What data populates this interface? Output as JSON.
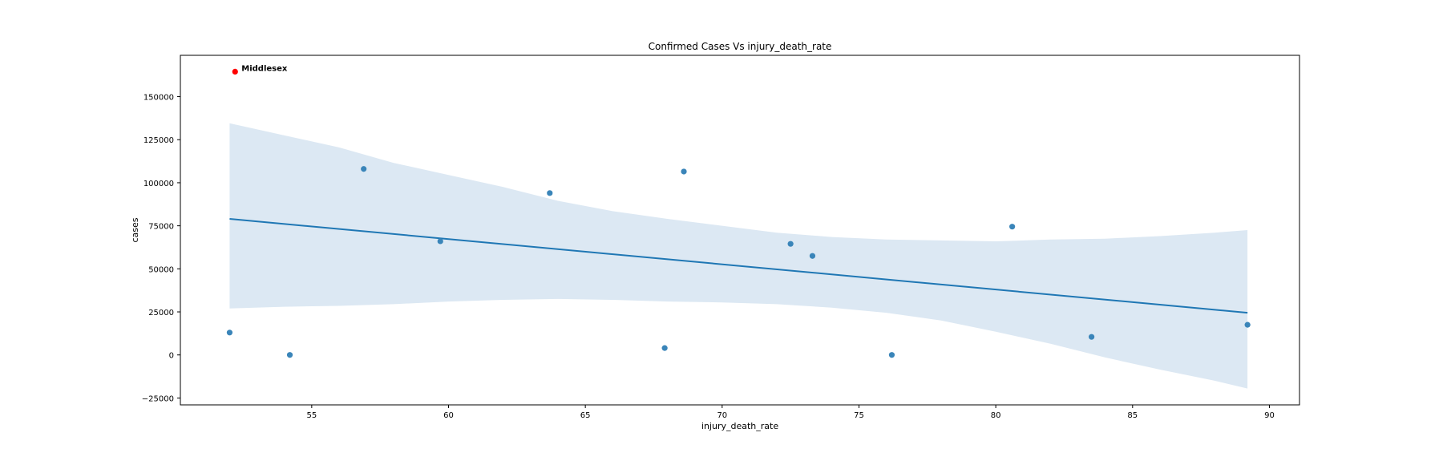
{
  "chart_data": {
    "type": "scatter",
    "title": "Confirmed Cases Vs injury_death_rate",
    "xlabel": "injury_death_rate",
    "ylabel": "cases",
    "xlim": [
      50.2,
      91.1
    ],
    "ylim": [
      -29000,
      174000
    ],
    "xticks": [
      55,
      60,
      65,
      70,
      75,
      80,
      85,
      90
    ],
    "yticks": [
      -25000,
      0,
      25000,
      50000,
      75000,
      100000,
      125000,
      150000
    ],
    "grid": false,
    "points": [
      {
        "x": 52.0,
        "y": 13000
      },
      {
        "x": 54.2,
        "y": 0
      },
      {
        "x": 56.9,
        "y": 108000
      },
      {
        "x": 59.7,
        "y": 66000
      },
      {
        "x": 63.7,
        "y": 94000
      },
      {
        "x": 67.9,
        "y": 4000
      },
      {
        "x": 68.6,
        "y": 106500
      },
      {
        "x": 72.5,
        "y": 64500
      },
      {
        "x": 73.3,
        "y": 57500
      },
      {
        "x": 76.2,
        "y": 0
      },
      {
        "x": 80.6,
        "y": 74500
      },
      {
        "x": 83.5,
        "y": 10500
      },
      {
        "x": 89.2,
        "y": 17500
      }
    ],
    "highlight": {
      "x": 52.2,
      "y": 164500,
      "label": "Middlesex",
      "color": "#ff0000"
    },
    "regression_line": {
      "x": [
        52.0,
        89.2
      ],
      "y": [
        79000,
        24500
      ]
    },
    "confidence_band": {
      "x": [
        52.0,
        54,
        56,
        58,
        60,
        62,
        64,
        66,
        68,
        70,
        72,
        74,
        76,
        78,
        80,
        82,
        84,
        86,
        88,
        89.2
      ],
      "upper": [
        134500,
        127500,
        120500,
        111500,
        104500,
        97500,
        89500,
        83500,
        79000,
        75000,
        71000,
        68500,
        67000,
        66500,
        66000,
        67000,
        67500,
        69000,
        71000,
        72500
      ],
      "lower": [
        27000,
        28000,
        28500,
        29500,
        31000,
        32000,
        32500,
        32000,
        31000,
        30500,
        29500,
        27500,
        24500,
        20000,
        13500,
        6500,
        -1500,
        -8500,
        -15000,
        -19500
      ]
    },
    "colors": {
      "points": "#3a85b9",
      "line": "#1f77b4",
      "band": "#dce8f3",
      "highlight": "#ff0000"
    }
  }
}
